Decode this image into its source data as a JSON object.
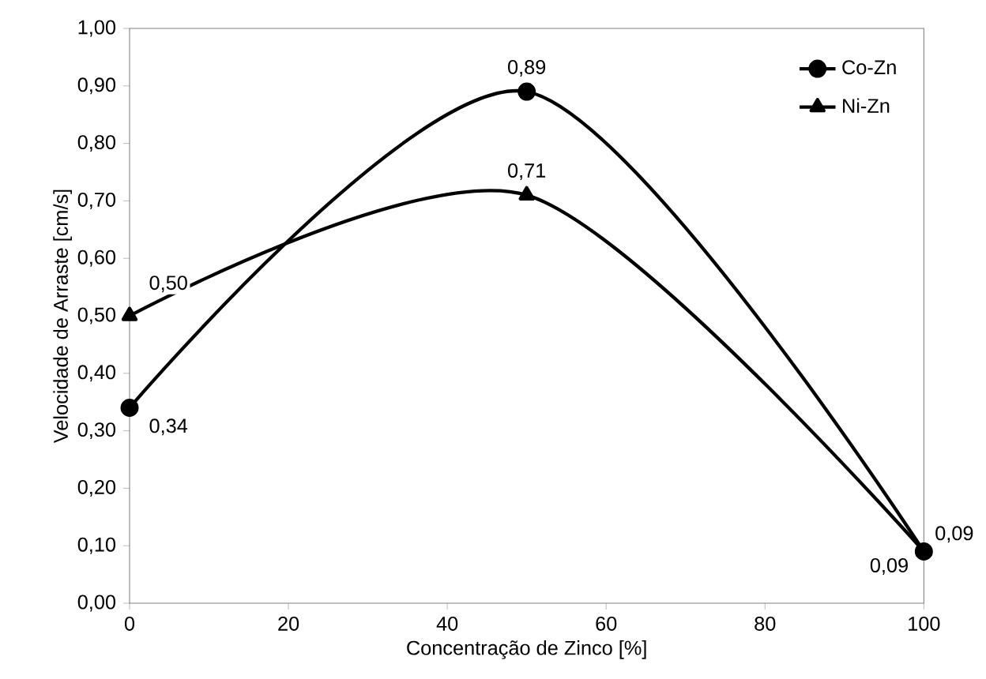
{
  "chart_data": {
    "type": "line",
    "xlabel": "Concentração de Zinco [%]",
    "ylabel": "Velocidade de Arraste [cm/s]",
    "x": [
      0,
      50,
      100
    ],
    "series": [
      {
        "name": "Co-Zn",
        "color": "#000000",
        "marker": "circle",
        "values": [
          0.34,
          0.89,
          0.09
        ],
        "value_labels": [
          "0,34",
          "0,89",
          "0,09"
        ]
      },
      {
        "name": "Ni-Zn",
        "color": "#000000",
        "marker": "triangle",
        "values": [
          0.5,
          0.71,
          0.09
        ],
        "value_labels": [
          "0,50",
          "0,71",
          "0,09"
        ]
      }
    ],
    "xlim": [
      0,
      100
    ],
    "xticks": [
      0,
      20,
      40,
      60,
      80,
      100
    ],
    "ylim": [
      0,
      1
    ],
    "yticks": [
      {
        "value": 0,
        "label": "0,00"
      },
      {
        "value": 0.1,
        "label": "0,10"
      },
      {
        "value": 0.2,
        "label": "0,20"
      },
      {
        "value": 0.3,
        "label": "0,30"
      },
      {
        "value": 0.4,
        "label": "0,40"
      },
      {
        "value": 0.5,
        "label": "0,50"
      },
      {
        "value": 0.6,
        "label": "0,60"
      },
      {
        "value": 0.7,
        "label": "0,70"
      },
      {
        "value": 0.8,
        "label": "0,80"
      },
      {
        "value": 0.9,
        "label": "0,90"
      },
      {
        "value": 1,
        "label": "1,00"
      }
    ],
    "legend": "top right",
    "line_style": "solid"
  }
}
